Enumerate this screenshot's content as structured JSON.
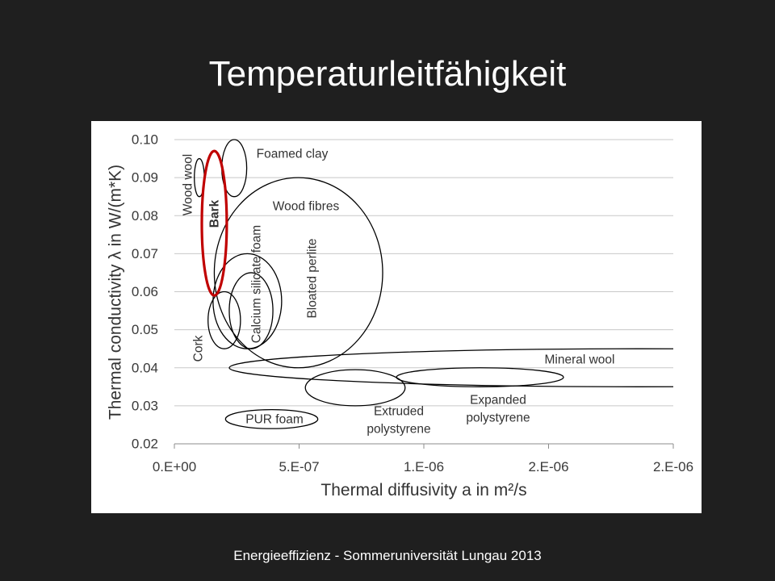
{
  "slide": {
    "title": "Temperaturleitfähigkeit",
    "footer": "Energieeffizienz - Sommeruniversität Lungau 2013",
    "background_color": "#1f1f1f",
    "text_color": "#ffffff"
  },
  "chart_data": {
    "type": "scatter",
    "xlabel": "Thermal diffusivity a in m²/s",
    "ylabel": "Thermal conductivity λ in W/(m*K)",
    "xlim": [
      0,
      2e-06
    ],
    "ylim": [
      0.02,
      0.1
    ],
    "x_ticks": [
      0,
      5e-07,
      1e-06,
      1.5e-06,
      2e-06
    ],
    "x_tick_labels": [
      "0.E+00",
      "5.E-07",
      "1.E-06",
      "2.E-06",
      "2.E-06"
    ],
    "y_ticks": [
      0.02,
      0.03,
      0.04,
      0.05,
      0.06,
      0.07,
      0.08,
      0.09,
      0.1
    ],
    "y_tick_labels": [
      "0.02",
      "0.03",
      "0.04",
      "0.05",
      "0.06",
      "0.07",
      "0.08",
      "0.09",
      "0.10"
    ],
    "grid": true,
    "colors": {
      "outline": "#000000",
      "highlight": "#c00000",
      "grid": "#c8c8c8",
      "axis": "#8c8c8c"
    },
    "regions": [
      {
        "label": [
          "Foamed clay"
        ],
        "x_range": [
          1.9e-07,
          2.9e-07
        ],
        "y_range": [
          0.085,
          0.1
        ]
      },
      {
        "label": [
          "Wood wool"
        ],
        "x_range": [
          8e-08,
          1.2e-07
        ],
        "y_range": [
          0.085,
          0.095
        ]
      },
      {
        "label": [
          "Bark"
        ],
        "x_range": [
          1.1e-07,
          2.1e-07
        ],
        "y_range": [
          0.059,
          0.097
        ],
        "highlight": true
      },
      {
        "label": [
          "Wood fibres"
        ],
        "x_range": [
          1.6e-07,
          8.35e-07
        ],
        "y_range": [
          0.04,
          0.09
        ]
      },
      {
        "label": [
          "Calcium silicate foam"
        ],
        "x_range": [
          1.55e-07,
          4.3e-07
        ],
        "y_range": [
          0.045,
          0.07
        ]
      },
      {
        "label": [],
        "x_range": [
          2.2e-07,
          3.95e-07
        ],
        "y_range": [
          0.045,
          0.065
        ]
      },
      {
        "label": [
          "Cork"
        ],
        "x_range": [
          1.35e-07,
          2.65e-07
        ],
        "y_range": [
          0.045,
          0.06
        ]
      },
      {
        "label": [
          "Mineral wool"
        ],
        "x_range": [
          2.2e-07,
          3.5e-06
        ],
        "y_range": [
          0.035,
          0.045
        ]
      },
      {
        "label": [
          "Expanded",
          "polystyrene"
        ],
        "x_range": [
          8.9e-07,
          1.56e-06
        ],
        "y_range": [
          0.035,
          0.04
        ]
      },
      {
        "label": [
          "Extruded",
          "polystyrene"
        ],
        "x_range": [
          5.25e-07,
          9.25e-07
        ],
        "y_range": [
          0.03,
          0.0395
        ]
      },
      {
        "label": [
          "PUR foam"
        ],
        "x_range": [
          2.05e-07,
          5.75e-07
        ],
        "y_range": [
          0.024,
          0.029
        ]
      }
    ],
    "annotations": [
      {
        "text": "Bloated perlite"
      }
    ]
  }
}
